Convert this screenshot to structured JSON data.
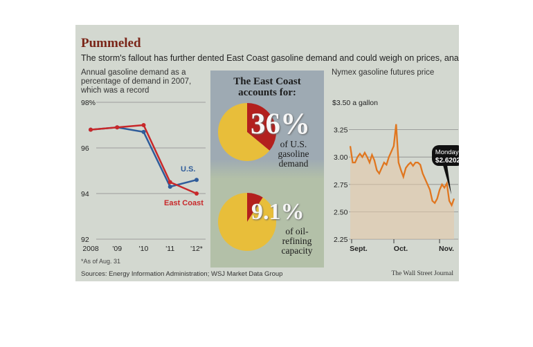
{
  "headline": "Pummeled",
  "subhead": "The storm's fallout has further dented East Coast gasoline demand and could weigh on prices, analysts say.",
  "left_note": "Annual gasoline demand as a percentage of demand in 2007, which was a record",
  "right_note": "Nymex gasoline futures price",
  "center": {
    "title_line1": "The East Coast",
    "title_line2": "accounts for:",
    "pct1": "36%",
    "label1": "of U.S. gasoline demand",
    "pct2": "9.1%",
    "label2": "of oil-refining capacity"
  },
  "footnote": "*As of Aug. 31",
  "sources": "Sources: Energy Information Administration; WSJ Market Data Group",
  "credit": "The Wall Street Journal",
  "callout": {
    "line1": "Monday:",
    "line2": "$2.6202"
  },
  "colors": {
    "us": "#2f5c9a",
    "east_coast": "#c8282a",
    "futures": "#e0761f",
    "pie_main": "#e8be3a",
    "pie_slice": "#b3201e"
  },
  "chart_data": [
    {
      "type": "line",
      "x": [
        "2008",
        "'09",
        "'10",
        "'11",
        "'12*"
      ],
      "series": [
        {
          "name": "U.S.",
          "values": [
            96.8,
            96.9,
            96.7,
            94.3,
            94.6
          ]
        },
        {
          "name": "East Coast",
          "values": [
            96.8,
            96.9,
            97.0,
            94.5,
            94.0
          ]
        }
      ],
      "yticks": [
        "98%",
        "96",
        "94",
        "92"
      ],
      "ylim": [
        92,
        98
      ],
      "grid": true
    },
    {
      "type": "pie",
      "slices": [
        {
          "label": "of U.S. gasoline demand",
          "value": 36
        },
        {
          "label": "rest",
          "value": 64
        }
      ]
    },
    {
      "type": "pie",
      "slices": [
        {
          "label": "of oil-refining capacity",
          "value": 9.1
        },
        {
          "label": "rest",
          "value": 90.9
        }
      ]
    },
    {
      "type": "area",
      "xticks": [
        "Sept.",
        "Oct.",
        "Nov."
      ],
      "yticks": [
        "$3.50 a gallon",
        "3.25",
        "3.00",
        "2.75",
        "2.50",
        "2.25"
      ],
      "ylim": [
        2.25,
        3.5
      ],
      "values": [
        3.1,
        2.95,
        2.95,
        3.0,
        3.03,
        3.0,
        3.04,
        3.0,
        2.95,
        3.02,
        2.97,
        2.88,
        2.85,
        2.9,
        2.95,
        2.93,
        3.0,
        3.05,
        3.1,
        3.3,
        2.95,
        2.88,
        2.82,
        2.9,
        2.93,
        2.95,
        2.92,
        2.95,
        2.95,
        2.93,
        2.85,
        2.8,
        2.75,
        2.7,
        2.6,
        2.58,
        2.62,
        2.7,
        2.75,
        2.72,
        2.76,
        2.6,
        2.56,
        2.62
      ],
      "grid": true
    }
  ]
}
